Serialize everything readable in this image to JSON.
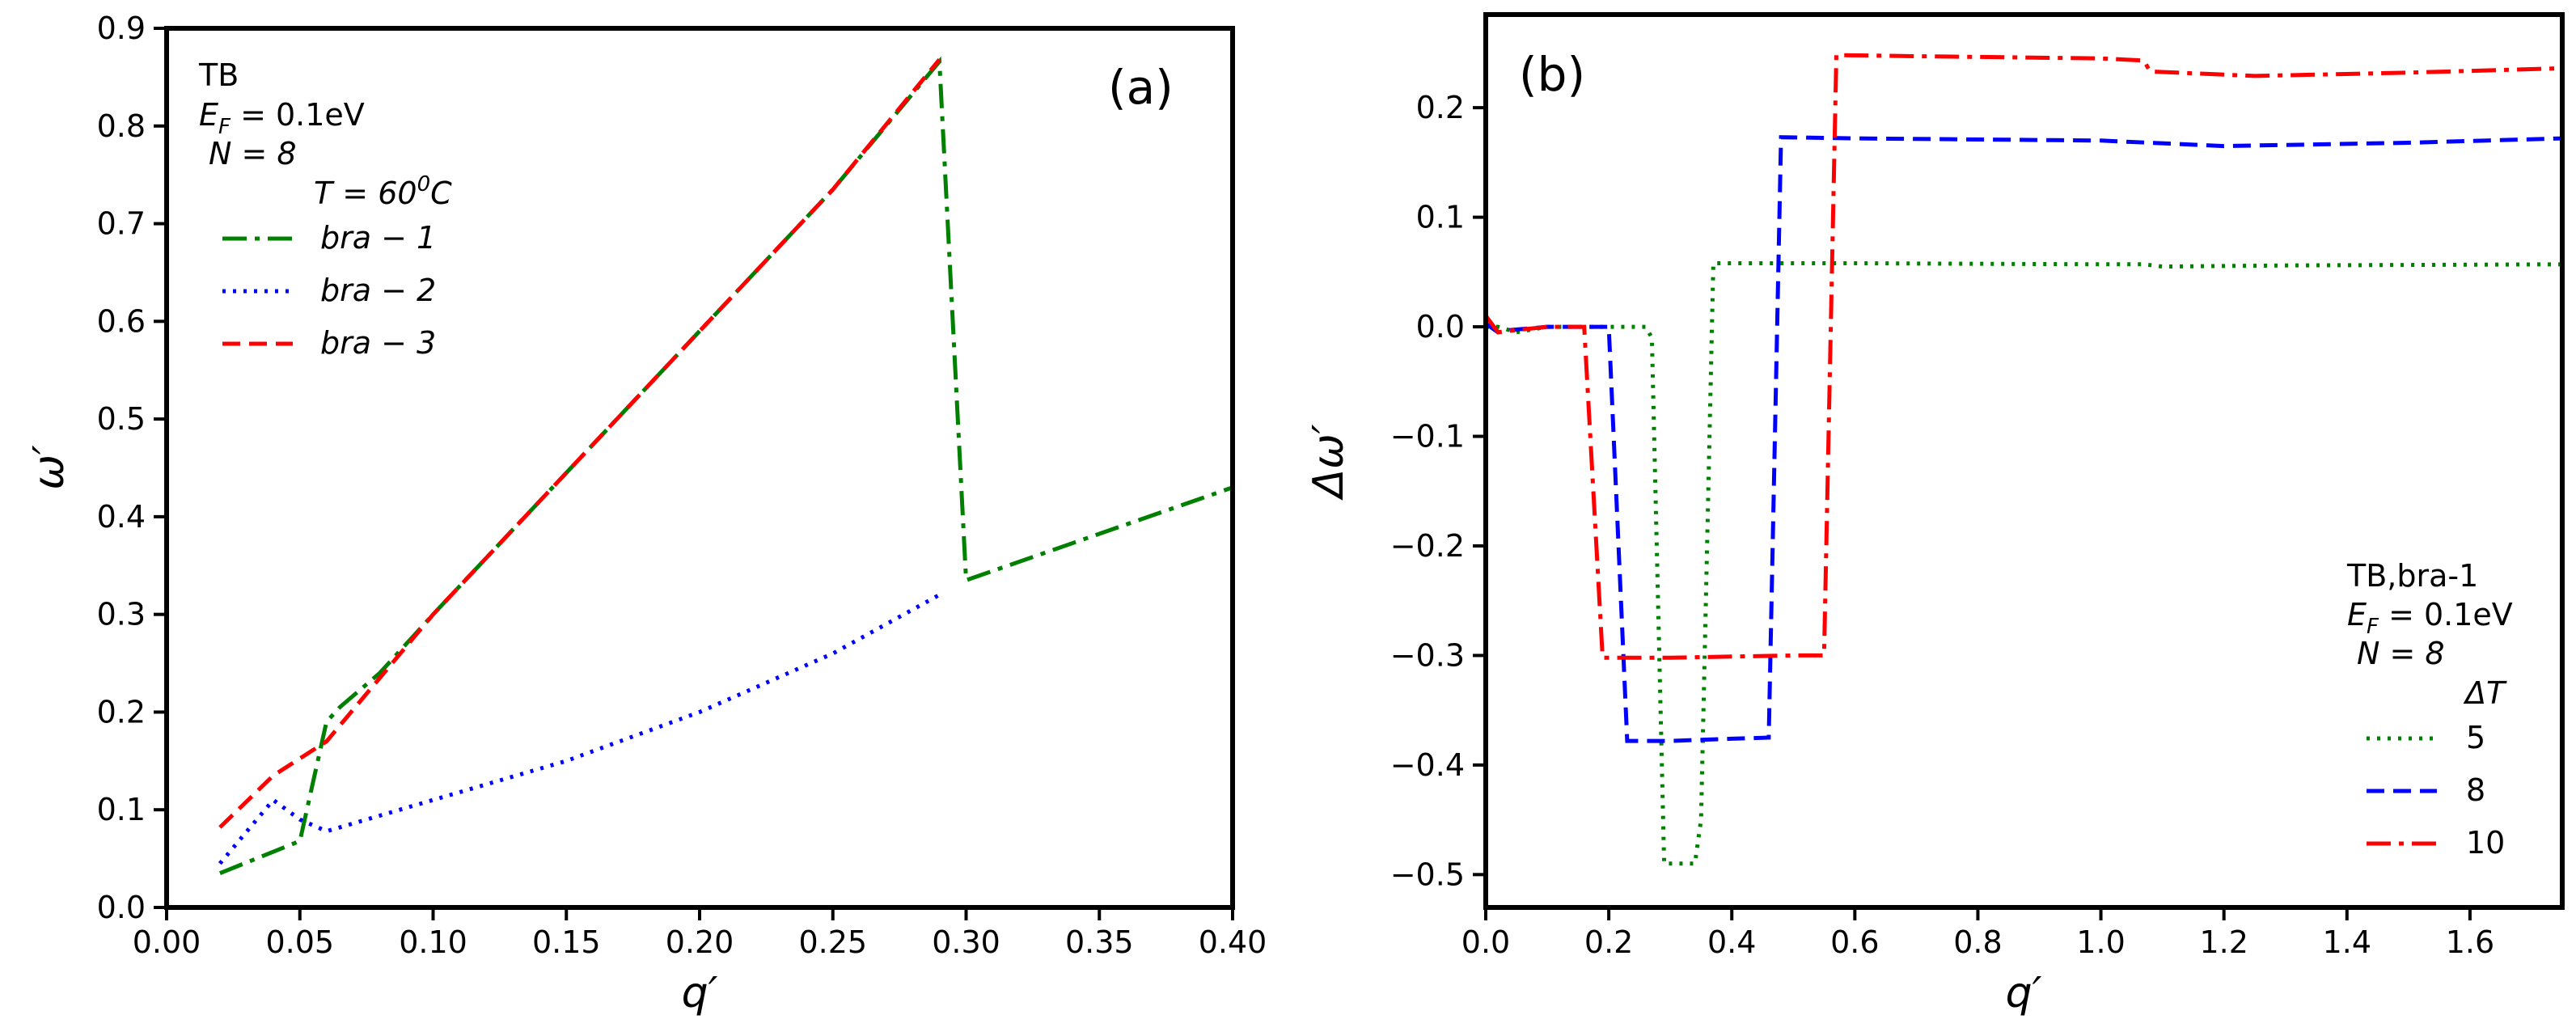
{
  "figure": {
    "panels": [
      "a",
      "b"
    ]
  },
  "chart_data": [
    {
      "type": "line",
      "panel_label": "(a)",
      "xlabel": "q′",
      "ylabel": "ω′",
      "xlim": [
        0.0,
        0.4
      ],
      "ylim": [
        0.0,
        0.9
      ],
      "xticks": [
        "0.00",
        "0.05",
        "0.10",
        "0.15",
        "0.20",
        "0.25",
        "0.30",
        "0.35",
        "0.40"
      ],
      "yticks": [
        "0.0",
        "0.1",
        "0.2",
        "0.3",
        "0.4",
        "0.5",
        "0.6",
        "0.7",
        "0.8",
        "0.9"
      ],
      "annotation": {
        "line1": "TB",
        "ef_label": "E",
        "ef_sub": "F",
        "ef_value": " = 0.1eV",
        "n_line": "N = 8",
        "t_prefix": "T = 60",
        "t_sup": "0",
        "t_suffix": "C"
      },
      "series": [
        {
          "name": "bra − 1",
          "color": "#008000",
          "style": "dashdot",
          "x": [
            0.02,
            0.05,
            0.06,
            0.065,
            0.08,
            0.1,
            0.15,
            0.2,
            0.25,
            0.29,
            0.3,
            0.4
          ],
          "y": [
            0.035,
            0.068,
            0.19,
            0.205,
            0.24,
            0.3,
            0.445,
            0.59,
            0.735,
            0.866,
            0.335,
            0.43
          ]
        },
        {
          "name": "bra − 2",
          "color": "#0000ff",
          "style": "dotted",
          "x": [
            0.02,
            0.04,
            0.05,
            0.06,
            0.1,
            0.15,
            0.2,
            0.25,
            0.29
          ],
          "y": [
            0.045,
            0.11,
            0.09,
            0.078,
            0.11,
            0.15,
            0.2,
            0.26,
            0.32
          ]
        },
        {
          "name": "bra − 3",
          "color": "#ff0000",
          "style": "dashed",
          "x": [
            0.02,
            0.04,
            0.06,
            0.1,
            0.15,
            0.2,
            0.25,
            0.29
          ],
          "y": [
            0.082,
            0.135,
            0.17,
            0.3,
            0.445,
            0.59,
            0.735,
            0.868
          ]
        }
      ]
    },
    {
      "type": "line",
      "panel_label": "(b)",
      "xlabel": "q′",
      "ylabel": "Δω′",
      "xlim": [
        0.0,
        1.75
      ],
      "ylim": [
        -0.53,
        0.285
      ],
      "xticks": [
        "0.0",
        "0.2",
        "0.4",
        "0.6",
        "0.8",
        "1.0",
        "1.2",
        "1.4",
        "1.6"
      ],
      "yticks": [
        "−0.5",
        "−0.4",
        "−0.3",
        "−0.2",
        "−0.1",
        "0.0",
        "0.1",
        "0.2"
      ],
      "annotation": {
        "line1": "TB,bra-1",
        "ef_label": "E",
        "ef_sub": "F",
        "ef_value": " = 0.1eV",
        "n_line": "N = 8",
        "dt_line": "ΔT"
      },
      "series": [
        {
          "name": "5",
          "color": "#008000",
          "style": "dotted",
          "x": [
            0.0,
            0.02,
            0.05,
            0.1,
            0.2,
            0.26,
            0.27,
            0.29,
            0.3,
            0.34,
            0.35,
            0.37,
            0.6,
            1.0,
            1.07,
            1.1,
            1.3,
            1.75
          ],
          "y": [
            0.0,
            0.0,
            -0.005,
            0.0,
            0.0,
            0.0,
            -0.01,
            -0.49,
            -0.49,
            -0.49,
            -0.45,
            0.058,
            0.058,
            0.057,
            0.057,
            0.055,
            0.056,
            0.057
          ]
        },
        {
          "name": "8",
          "color": "#0000ff",
          "style": "dashed",
          "x": [
            0.0,
            0.02,
            0.04,
            0.1,
            0.2,
            0.23,
            0.3,
            0.4,
            0.46,
            0.48,
            0.6,
            1.0,
            1.2,
            1.5,
            1.75
          ],
          "y": [
            0.003,
            -0.005,
            -0.003,
            0.0,
            0.0,
            -0.378,
            -0.378,
            -0.376,
            -0.375,
            0.173,
            0.172,
            0.17,
            0.165,
            0.168,
            0.172
          ]
        },
        {
          "name": "10",
          "color": "#ff0000",
          "style": "dashdot",
          "x": [
            0.0,
            0.02,
            0.05,
            0.1,
            0.16,
            0.19,
            0.3,
            0.4,
            0.5,
            0.55,
            0.57,
            0.7,
            1.0,
            1.07,
            1.08,
            1.25,
            1.5,
            1.75
          ],
          "y": [
            0.01,
            -0.005,
            -0.003,
            0.0,
            0.0,
            -0.302,
            -0.302,
            -0.301,
            -0.3,
            -0.3,
            0.248,
            0.247,
            0.245,
            0.243,
            0.233,
            0.229,
            0.232,
            0.236
          ]
        }
      ]
    }
  ]
}
